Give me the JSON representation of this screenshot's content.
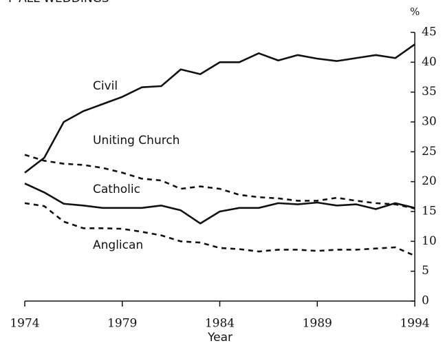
{
  "chart_data": {
    "type": "line",
    "title": "F ALL WEDDINGS",
    "x_label": "Year",
    "y_label": "%",
    "x": [
      1974,
      1975,
      1976,
      1977,
      1978,
      1979,
      1980,
      1981,
      1982,
      1983,
      1984,
      1985,
      1986,
      1987,
      1988,
      1989,
      1990,
      1991,
      1992,
      1993,
      1994
    ],
    "series": [
      {
        "name": "Civil",
        "color": "#111111",
        "dash": false,
        "values": [
          21.5,
          24,
          30,
          31.8,
          33,
          34.2,
          35.8,
          36,
          38.8,
          38,
          40,
          40,
          41.5,
          40.3,
          41.2,
          40.6,
          40.2,
          40.7,
          41.2,
          40.7,
          43
        ]
      },
      {
        "name": "Uniting Church",
        "color": "#111111",
        "dash": true,
        "values": [
          24.5,
          23.5,
          23,
          22.8,
          22.3,
          21.5,
          20.5,
          20.2,
          18.8,
          19.2,
          18.8,
          17.8,
          17.4,
          17.2,
          16.8,
          16.8,
          17.3,
          16.8,
          16.4,
          16.2,
          15.5
        ]
      },
      {
        "name": "Catholic",
        "color": "#111111",
        "dash": false,
        "values": [
          19.7,
          18.2,
          16.3,
          16,
          15.6,
          15.6,
          15.6,
          16,
          15.2,
          13,
          15,
          15.6,
          15.6,
          16.4,
          16.2,
          16.5,
          16,
          16.2,
          15.4,
          16.4,
          15.6
        ]
      },
      {
        "name": "Anglican",
        "color": "#111111",
        "dash": true,
        "values": [
          16.4,
          15.9,
          13.3,
          12.2,
          12.2,
          12.1,
          11.6,
          11,
          10,
          9.8,
          8.9,
          8.7,
          8.3,
          8.6,
          8.6,
          8.4,
          8.6,
          8.6,
          8.8,
          9,
          7.6
        ]
      }
    ],
    "xlim": [
      1974,
      1994
    ],
    "xticks": [
      1974,
      1979,
      1984,
      1989,
      1994
    ],
    "ylim": [
      0,
      45
    ],
    "yticks": [
      0,
      5,
      10,
      15,
      20,
      25,
      30,
      35,
      40,
      45
    ],
    "y_axis_side": "right"
  }
}
